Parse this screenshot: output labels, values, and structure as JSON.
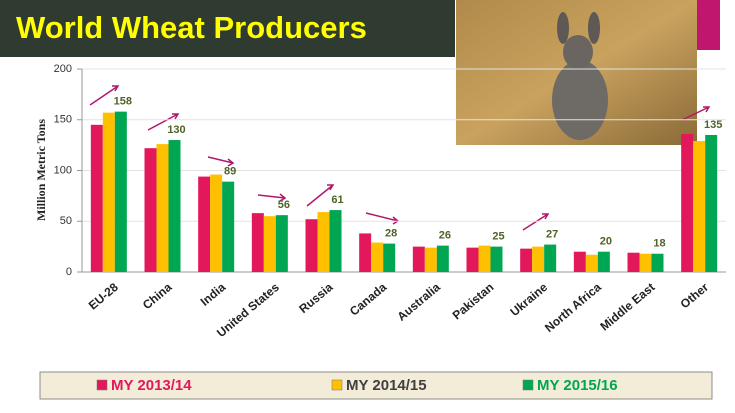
{
  "chart_data": {
    "type": "bar",
    "title": "World Wheat Producers",
    "ylabel": "Million Metric Tons",
    "categories": [
      "EU-28",
      "China",
      "India",
      "United States",
      "Russia",
      "Canada",
      "Australia",
      "Pakistan",
      "Ukraine",
      "North Africa",
      "Middle East",
      "Other"
    ],
    "series": [
      {
        "name": "MY 2013/14",
        "color": "#e3185b",
        "label_color": "#e3185b",
        "values": [
          145,
          122,
          94,
          58,
          52,
          38,
          25,
          24,
          23,
          20,
          19,
          136
        ]
      },
      {
        "name": "MY 2014/15",
        "color": "#ffc000",
        "label_color": "#404040",
        "values": [
          157,
          126,
          96,
          55,
          59,
          29,
          24,
          26,
          25,
          17,
          18,
          129
        ]
      },
      {
        "name": "MY 2015/16",
        "color": "#00a651",
        "label_color": "#00a651",
        "values": [
          158,
          130,
          89,
          56,
          61,
          28,
          26,
          25,
          27,
          20,
          18,
          135
        ],
        "show_labels": true
      }
    ],
    "ylim": [
      0,
      200
    ],
    "yticks": [
      0,
      50,
      100,
      150,
      200
    ],
    "grid": true
  }
}
